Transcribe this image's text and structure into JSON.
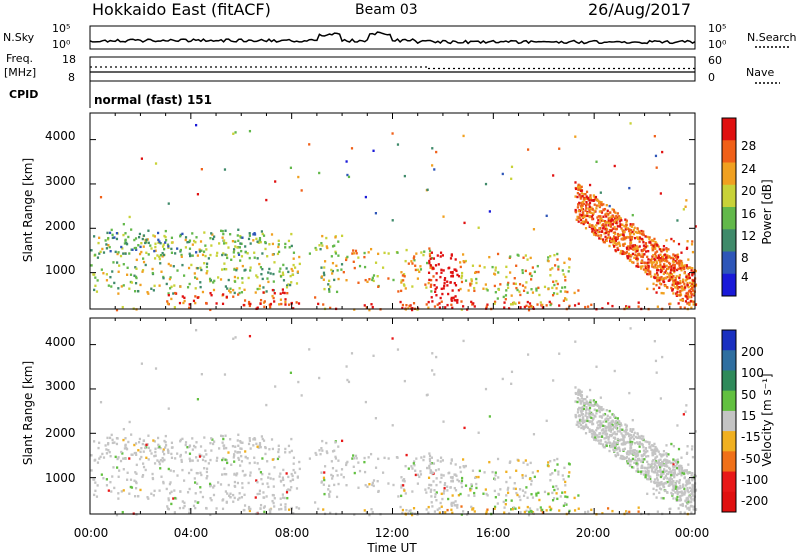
{
  "header": {
    "station": "Hokkaido East (fitACF)",
    "beam": "Beam 03",
    "date": "26/Aug/2017"
  },
  "labels": {
    "nsky": "N.Sky",
    "freq_line1": "Freq.",
    "freq_line2": "[MHz]",
    "cpid": "CPID",
    "nsearch": "N.Search",
    "nave": "Nave",
    "cpid_value": "normal (fast) 151",
    "nsky_top": "10^5",
    "nsky_bottom": "10^0",
    "nsearch_top": "10^5",
    "nsearch_bottom": "10^0",
    "freq_top": "18",
    "freq_bottom": "8",
    "nave_top": "60",
    "nave_bottom": "0",
    "slant_range_1": "Slant Range [km]",
    "slant_range_2": "Slant Range [km]",
    "power_label": "Power [dB]",
    "velocity_label": "Velocity [m s⁻¹]",
    "xlabel": "Time UT"
  },
  "chart_data": {
    "type": "heatmap",
    "x_ticks": [
      "00:00",
      "04:00",
      "08:00",
      "12:00",
      "16:00",
      "20:00",
      "00:00"
    ],
    "x_range_hours": [
      0,
      24
    ],
    "y_ticks_km": [
      1000,
      2000,
      3000,
      4000
    ],
    "y_range_km": [
      180,
      4600
    ],
    "power": {
      "label": "Power [dB]",
      "ticks": [
        "4",
        "8",
        "12",
        "16",
        "20",
        "24",
        "28"
      ],
      "colors": [
        "#1a1ad8",
        "#2e56b8",
        "#3f8a6a",
        "#62b84a",
        "#c8d238",
        "#f0a020",
        "#f06018",
        "#e01010"
      ]
    },
    "velocity": {
      "label": "Velocity [m s⁻¹]",
      "ticks": [
        "200",
        "100",
        "50",
        "15",
        "-15",
        "-50",
        "-100",
        "-200"
      ],
      "colors": [
        "#1a30c0",
        "#2f6fa0",
        "#2f8a5a",
        "#62c040",
        "#c4c4c4",
        "#f0b020",
        "#f07018",
        "#e81818",
        "#e01010"
      ]
    },
    "nsky_range": [
      "10^0",
      "10^5"
    ],
    "freq_range_mhz": [
      8,
      18
    ],
    "nave_range": [
      0,
      60
    ],
    "cpid": "normal (fast) 151"
  }
}
